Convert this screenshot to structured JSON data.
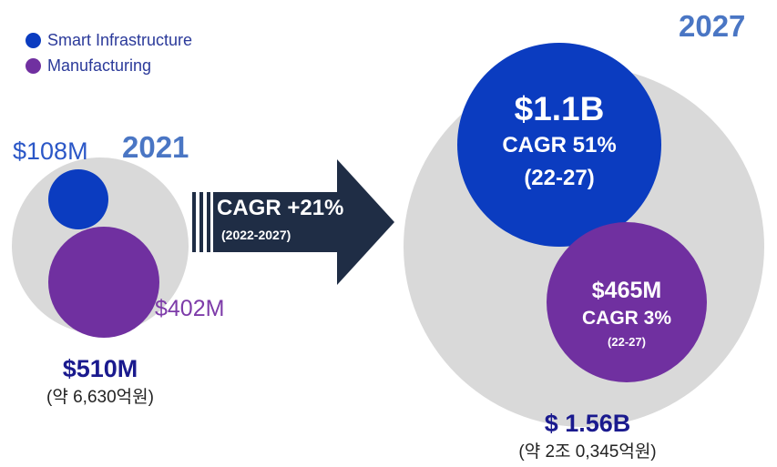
{
  "legend": [
    {
      "label": "Smart Infrastructure",
      "color": "#0b3cc0"
    },
    {
      "label": "Manufacturing",
      "color": "#7030a0"
    }
  ],
  "chart_data": {
    "type": "bubble",
    "arrow": {
      "label": "CAGR +21%",
      "sublabel": "(2022-2027)"
    },
    "groups": [
      {
        "year": "2021",
        "total_label": "$510M",
        "total_note": "(약 6,630억원)",
        "total_value_musd": 510,
        "segments": [
          {
            "series": "Smart Infrastructure",
            "label": "$108M",
            "value_musd": 108,
            "color": "#0b3cc0"
          },
          {
            "series": "Manufacturing",
            "label": "$402M",
            "value_musd": 402,
            "color": "#7030a0"
          }
        ]
      },
      {
        "year": "2027",
        "total_label": "$ 1.56B",
        "total_note": "(약 2조 0,345억원)",
        "total_value_musd": 1560,
        "segments": [
          {
            "series": "Smart Infrastructure",
            "value_label": "$1.1B",
            "cagr": "CAGR 51%",
            "period": "(22-27)",
            "value_musd": 1100,
            "color": "#0b3cc0"
          },
          {
            "series": "Manufacturing",
            "value_label": "$465M",
            "cagr": "CAGR 3%",
            "period": "(22-27)",
            "value_musd": 465,
            "color": "#7030a0"
          }
        ]
      }
    ]
  }
}
